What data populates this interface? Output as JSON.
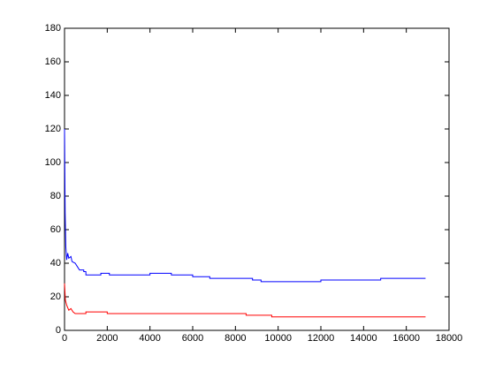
{
  "chart_data": {
    "type": "line",
    "xlim": [
      0,
      18000
    ],
    "xticks": [
      0,
      2000,
      4000,
      6000,
      8000,
      10000,
      12000,
      14000,
      16000,
      18000
    ],
    "ylim": [
      0,
      180
    ],
    "yticks": [
      0,
      20,
      40,
      60,
      80,
      100,
      120,
      140,
      160,
      180
    ],
    "grid": false,
    "series": [
      {
        "color": "#0000ff",
        "x": [
          0,
          30,
          60,
          100,
          150,
          200,
          300,
          350,
          500,
          600,
          700,
          900,
          900,
          1000,
          1000,
          1700,
          1700,
          2100,
          2100,
          4000,
          4000,
          5000,
          5000,
          6000,
          6000,
          6800,
          6800,
          8800,
          8800,
          9200,
          9200,
          12000,
          12000,
          14800,
          14800,
          16900
        ],
        "values": [
          120,
          70,
          50,
          42,
          46,
          43,
          44,
          41,
          40,
          38,
          36,
          36,
          35,
          35,
          33,
          33,
          34,
          34,
          33,
          33,
          34,
          34,
          33,
          33,
          32,
          32,
          31,
          31,
          30,
          30,
          29,
          29,
          30,
          30,
          31,
          31
        ]
      },
      {
        "color": "#ff0000",
        "x": [
          0,
          40,
          100,
          200,
          300,
          400,
          500,
          1000,
          1000,
          2000,
          2000,
          8500,
          8500,
          9700,
          9700,
          16900
        ],
        "values": [
          28,
          18,
          15,
          12,
          13,
          11,
          10,
          10,
          11,
          11,
          10,
          10,
          9,
          9,
          8,
          8
        ]
      }
    ]
  }
}
